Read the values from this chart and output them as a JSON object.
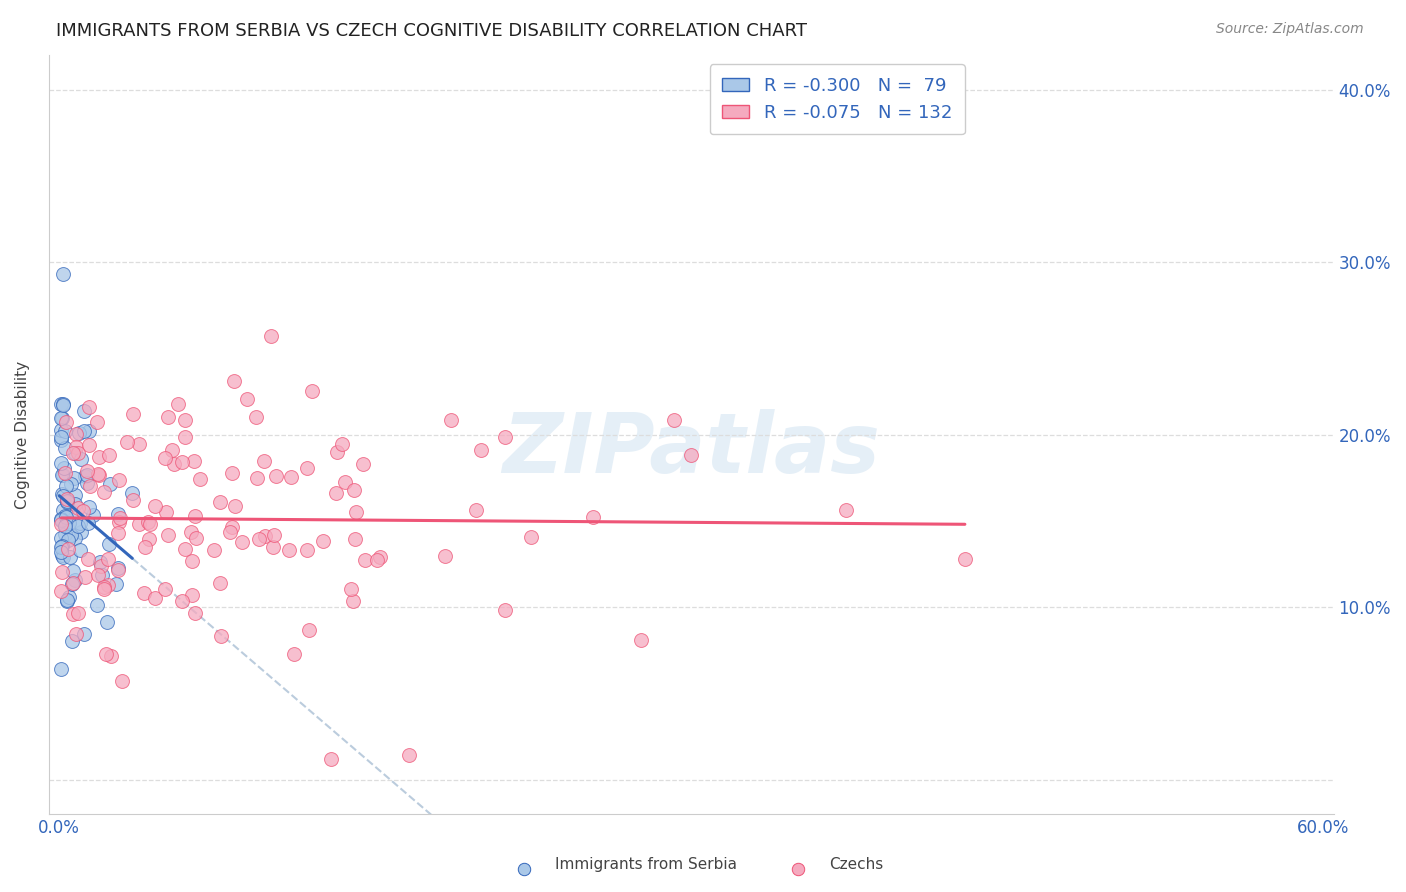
{
  "title": "IMMIGRANTS FROM SERBIA VS CZECH COGNITIVE DISABILITY CORRELATION CHART",
  "source": "Source: ZipAtlas.com",
  "ylabel": "Cognitive Disability",
  "legend_label1": "Immigrants from Serbia",
  "legend_label2": "Czechs",
  "legend_R1": "R = -0.300",
  "legend_N1": "N =  79",
  "legend_R2": "R = -0.075",
  "legend_N2": "N = 132",
  "color_serbia": "#aac8e8",
  "color_czechs": "#f5aabf",
  "color_serbia_line": "#3366bb",
  "color_czechs_line": "#ee5577",
  "background_color": "#ffffff",
  "watermark": "ZIPatlas",
  "xlim": [
    0.0,
    0.6
  ],
  "ylim": [
    -0.02,
    0.42
  ],
  "yticks": [
    0.0,
    0.1,
    0.2,
    0.3,
    0.4
  ],
  "ytick_labels_right": [
    "",
    "10.0%",
    "20.0%",
    "30.0%",
    "40.0%"
  ],
  "xtick_left_label": "0.0%",
  "xtick_right_label": "60.0%"
}
